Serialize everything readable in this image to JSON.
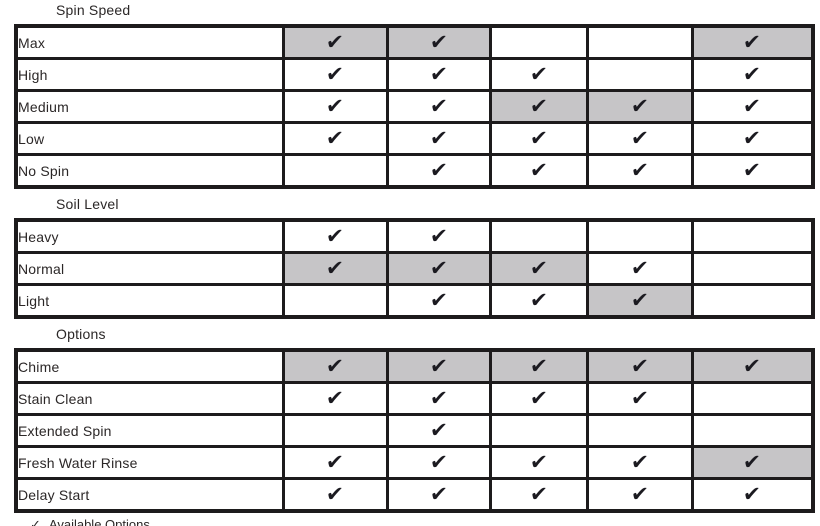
{
  "colors": {
    "border": "#1d1b1c",
    "shaded_cell": "#c6c5c7",
    "text": "#2b2727",
    "background": "#ffffff"
  },
  "check_glyph": "✔",
  "sections": [
    {
      "title": "Spin Speed",
      "rows": [
        {
          "label": "Max",
          "cells": [
            "CS",
            "CS",
            "",
            "",
            "CS"
          ]
        },
        {
          "label": "High",
          "cells": [
            "C",
            "C",
            "C",
            "",
            "C"
          ]
        },
        {
          "label": "Medium",
          "cells": [
            "C",
            "C",
            "CS",
            "CS",
            "C"
          ]
        },
        {
          "label": "Low",
          "cells": [
            "C",
            "C",
            "C",
            "C",
            "C"
          ]
        },
        {
          "label": "No Spin",
          "cells": [
            "",
            "C",
            "C",
            "C",
            "C"
          ]
        }
      ]
    },
    {
      "title": "Soil Level",
      "rows": [
        {
          "label": "Heavy",
          "cells": [
            "C",
            "C",
            "",
            "",
            ""
          ]
        },
        {
          "label": "Normal",
          "cells": [
            "CS",
            "CS",
            "CS",
            "C",
            ""
          ]
        },
        {
          "label": "Light",
          "cells": [
            "",
            "C",
            "C",
            "CS",
            ""
          ]
        }
      ]
    },
    {
      "title": "Options",
      "rows": [
        {
          "label": "Chime",
          "cells": [
            "CS",
            "CS",
            "CS",
            "CS",
            "CS"
          ]
        },
        {
          "label": "Stain Clean",
          "cells": [
            "C",
            "C",
            "C",
            "C",
            ""
          ]
        },
        {
          "label": "Extended Spin",
          "cells": [
            "",
            "C",
            "",
            "",
            ""
          ]
        },
        {
          "label": "Fresh Water Rinse",
          "cells": [
            "C",
            "C",
            "C",
            "C",
            "CS"
          ]
        },
        {
          "label": "Delay Start",
          "cells": [
            "C",
            "C",
            "C",
            "C",
            "C"
          ]
        }
      ]
    }
  ],
  "footnote": {
    "glyph": "✓",
    "text": "Available Options"
  }
}
